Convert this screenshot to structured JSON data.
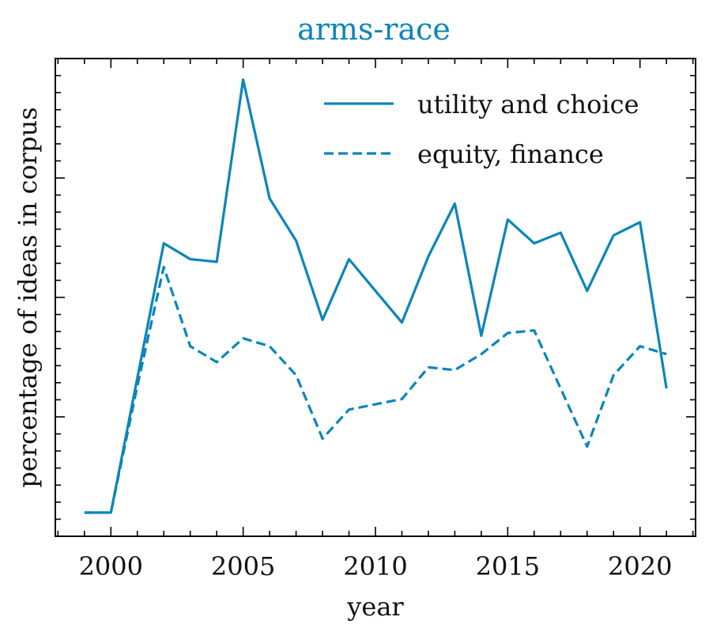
{
  "chart_data": {
    "type": "line",
    "title": "arms-race",
    "xlabel": "year",
    "ylabel": "percentage of ideas in corpus",
    "xlim": [
      1997.9,
      2022.1
    ],
    "ylim": [
      -0.45,
      8.6
    ],
    "x_major_ticks": [
      2000,
      2005,
      2010,
      2015,
      2020
    ],
    "x_minor_step": 1,
    "y_ticks_labeled": false,
    "grid": false,
    "legend_position": "top-right",
    "colors": {
      "title": "#0a85ba",
      "series": "#0a85ba"
    },
    "x": [
      1999,
      2000,
      2001,
      2002,
      2003,
      2004,
      2005,
      2006,
      2007,
      2008,
      2009,
      2010,
      2011,
      2012,
      2013,
      2014,
      2015,
      2016,
      2017,
      2018,
      2019,
      2020,
      2021
    ],
    "series": [
      {
        "name": "utility and choice",
        "style": "solid",
        "values": [
          0.0,
          0.0,
          2.55,
          5.1,
          4.8,
          4.75,
          8.2,
          5.95,
          5.15,
          3.65,
          4.8,
          4.2,
          3.6,
          4.85,
          5.85,
          3.35,
          5.55,
          5.1,
          5.3,
          4.2,
          5.25,
          5.5,
          2.35
        ]
      },
      {
        "name": "equity, finance",
        "style": "dashed",
        "values": [
          0.0,
          0.0,
          2.4,
          4.65,
          3.15,
          2.85,
          3.3,
          3.15,
          2.6,
          1.4,
          1.95,
          2.05,
          2.15,
          2.75,
          2.7,
          3.0,
          3.4,
          3.45,
          2.35,
          1.25,
          2.6,
          3.15,
          3.0
        ]
      }
    ]
  }
}
